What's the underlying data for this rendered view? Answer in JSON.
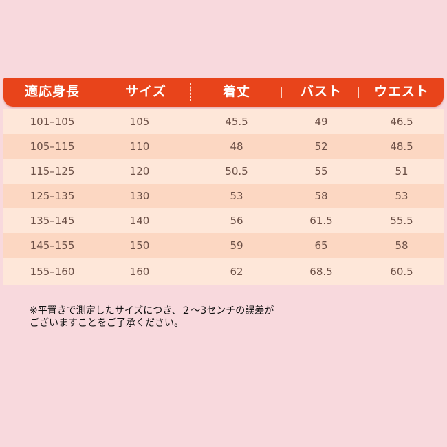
{
  "table": {
    "headers": [
      "適応身長",
      "サイズ",
      "着丈",
      "バスト",
      "ウエスト"
    ],
    "rows": [
      [
        "101–105",
        "105",
        "45.5",
        "49",
        "46.5"
      ],
      [
        "105–115",
        "110",
        "48",
        "52",
        "48.5"
      ],
      [
        "115–125",
        "120",
        "50.5",
        "55",
        "51"
      ],
      [
        "125–135",
        "130",
        "53",
        "58",
        "53"
      ],
      [
        "135–145",
        "140",
        "56",
        "61.5",
        "55.5"
      ],
      [
        "145–155",
        "150",
        "59",
        "65",
        "58"
      ],
      [
        "155–160",
        "160",
        "62",
        "68.5",
        "60.5"
      ]
    ]
  },
  "note": {
    "line1": "※平置きで測定したサイズにつき、２～3センチの誤差が",
    "line2": "ございますことをご了承ください。"
  },
  "colors": {
    "background": "#f8d9dd",
    "header": "#e8441b",
    "row_light": "#fee7d9",
    "row_dark": "#fcd7c2",
    "cell_text": "#6c5047"
  }
}
